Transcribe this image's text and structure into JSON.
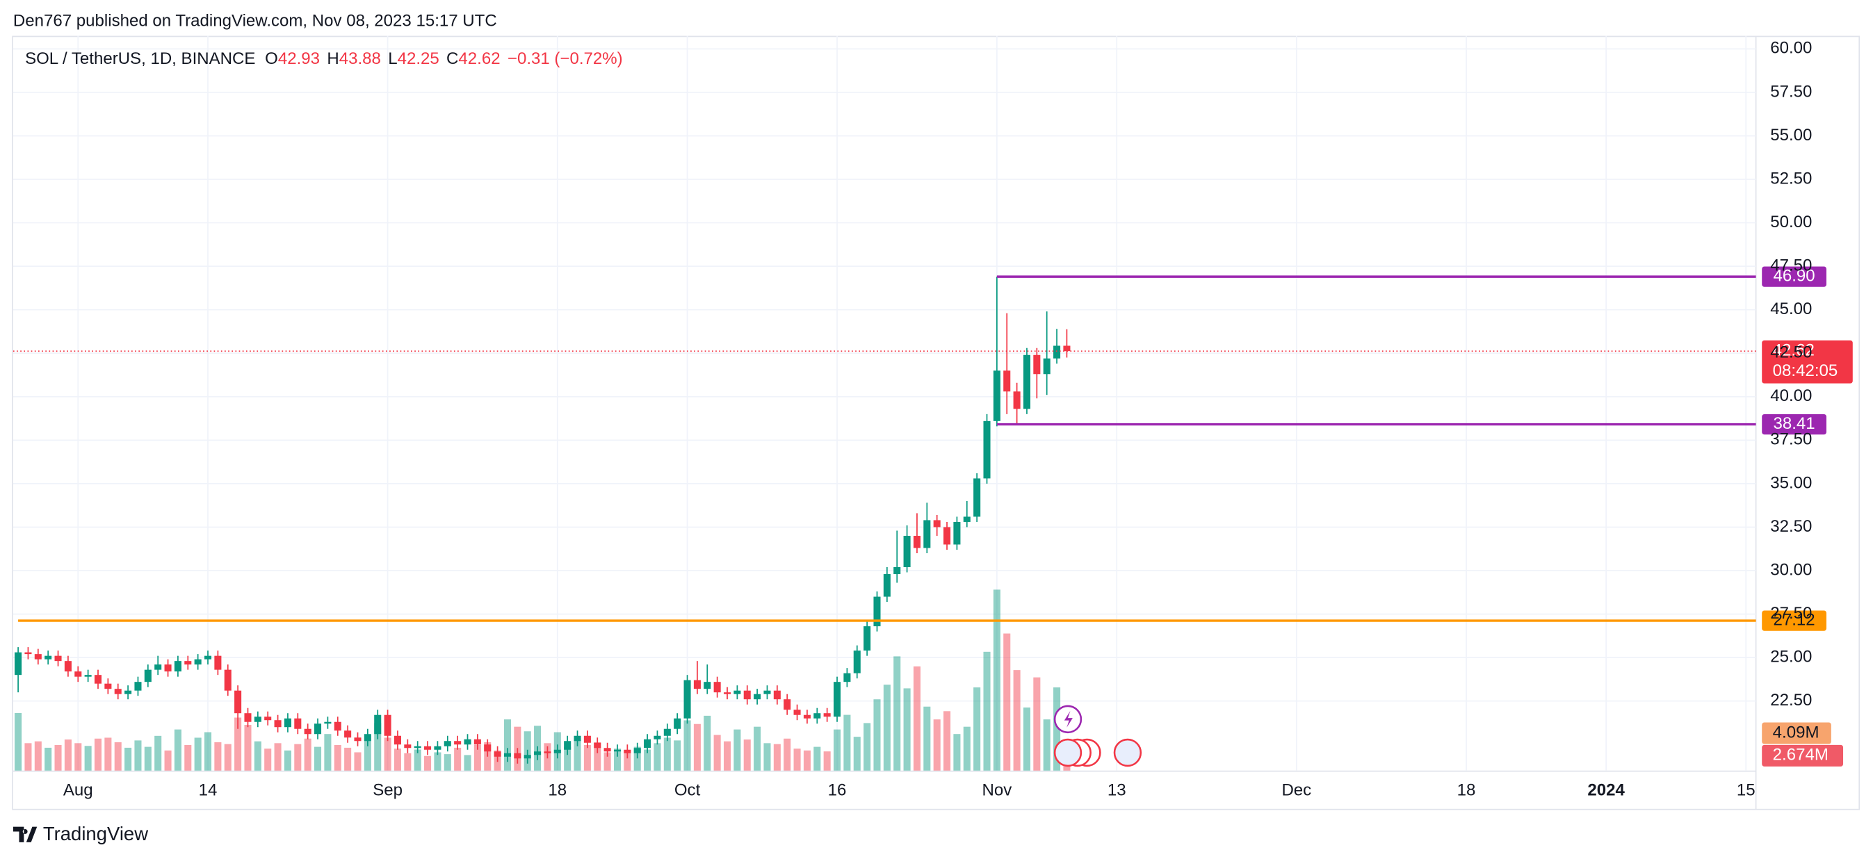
{
  "header": {
    "published": "Den767 published on TradingView.com, Nov 08, 2023 15:17 UTC"
  },
  "footer": {
    "brand": "TradingView"
  },
  "chart_data": {
    "type": "candlestick",
    "title": "SOL / TetherUS, 1D, BINANCE",
    "legend_letters": [
      "O",
      "H",
      "L",
      "C"
    ],
    "change": "−0.31 (−0.72%)",
    "countdown": "08:42:05",
    "up_color": "#089981",
    "down_color": "#f23645",
    "grid": true,
    "open": [
      24.0,
      25.3,
      25.2,
      24.9,
      25.1,
      24.8,
      24.2,
      23.9,
      24.0,
      23.5,
      23.2,
      22.9,
      23.1,
      23.6,
      24.3,
      24.6,
      24.2,
      24.8,
      24.6,
      24.9,
      25.1,
      24.3,
      23.1,
      21.8,
      21.3,
      21.6,
      21.4,
      21.0,
      21.5,
      20.9,
      20.6,
      21.2,
      21.3,
      20.8,
      20.4,
      20.2,
      20.6,
      21.7,
      20.5,
      20.0,
      19.8,
      19.9,
      19.7,
      19.9,
      20.2,
      20.0,
      20.3,
      20.0,
      19.6,
      19.3,
      19.5,
      19.2,
      19.4,
      19.6,
      19.5,
      19.7,
      20.2,
      20.5,
      20.1,
      19.8,
      19.6,
      19.7,
      19.5,
      19.8,
      20.3,
      20.5,
      20.9,
      21.5,
      23.7,
      23.2,
      23.6,
      23.0,
      22.9,
      23.1,
      22.6,
      22.9,
      23.1,
      22.6,
      22.0,
      21.7,
      21.5,
      21.8,
      21.6,
      23.6,
      24.1,
      25.4,
      26.8,
      28.5,
      29.8,
      30.2,
      32.0,
      31.3,
      32.9,
      32.5,
      31.5,
      32.8,
      33.1,
      35.3,
      38.6,
      41.5,
      40.3,
      39.3,
      42.4,
      41.3,
      42.2,
      42.93
    ],
    "high": [
      25.6,
      25.6,
      25.5,
      25.4,
      25.4,
      25.1,
      24.5,
      24.3,
      24.3,
      23.8,
      23.5,
      23.4,
      23.9,
      24.6,
      25.1,
      24.9,
      25.1,
      25.1,
      25.2,
      25.4,
      25.4,
      24.6,
      23.4,
      22.1,
      21.9,
      21.9,
      21.7,
      21.8,
      21.8,
      21.2,
      21.5,
      21.6,
      21.6,
      21.1,
      20.7,
      20.9,
      22.0,
      22.0,
      20.8,
      20.3,
      20.2,
      20.2,
      20.2,
      20.5,
      20.5,
      20.6,
      20.6,
      20.3,
      19.9,
      19.8,
      19.8,
      19.7,
      19.9,
      19.9,
      20.0,
      20.5,
      20.8,
      20.8,
      20.4,
      20.1,
      20.0,
      20.0,
      20.1,
      20.6,
      20.8,
      21.2,
      21.8,
      24.0,
      24.8,
      24.6,
      23.9,
      23.3,
      23.4,
      23.4,
      23.2,
      23.4,
      23.4,
      22.9,
      22.3,
      22.0,
      22.1,
      22.1,
      23.9,
      24.4,
      25.7,
      27.1,
      28.8,
      30.2,
      32.3,
      32.6,
      33.3,
      33.9,
      33.2,
      32.8,
      33.1,
      34.0,
      35.6,
      39.0,
      46.9,
      44.8,
      40.8,
      42.8,
      42.8,
      44.9,
      43.9,
      43.88
    ],
    "low": [
      23.0,
      24.9,
      24.6,
      24.6,
      24.5,
      23.9,
      23.6,
      23.6,
      23.2,
      22.9,
      22.6,
      22.6,
      22.8,
      23.3,
      24.0,
      23.9,
      23.9,
      24.3,
      24.3,
      24.6,
      24.0,
      22.8,
      20.9,
      21.0,
      21.0,
      21.1,
      20.7,
      20.7,
      20.6,
      20.3,
      20.3,
      20.9,
      20.5,
      20.1,
      19.9,
      19.9,
      20.3,
      20.2,
      19.7,
      19.5,
      19.5,
      19.4,
      19.4,
      19.6,
      19.7,
      19.7,
      19.7,
      19.3,
      19.0,
      19.0,
      18.9,
      18.9,
      19.1,
      19.2,
      19.2,
      19.4,
      19.9,
      19.8,
      19.5,
      19.3,
      19.3,
      19.2,
      19.2,
      19.5,
      20.0,
      20.2,
      20.6,
      21.2,
      22.9,
      22.9,
      22.7,
      22.6,
      22.6,
      22.3,
      22.3,
      22.6,
      22.3,
      21.7,
      21.4,
      21.2,
      21.2,
      21.3,
      21.3,
      23.3,
      23.8,
      25.1,
      26.5,
      28.2,
      29.3,
      29.9,
      31.0,
      31.0,
      32.0,
      31.2,
      31.2,
      32.5,
      32.8,
      35.0,
      38.3,
      39.0,
      38.4,
      39.0,
      39.9,
      40.1,
      41.9,
      42.25
    ],
    "close": [
      25.3,
      25.2,
      24.9,
      25.1,
      24.8,
      24.2,
      23.9,
      24.0,
      23.5,
      23.2,
      22.9,
      23.1,
      23.6,
      24.3,
      24.6,
      24.2,
      24.8,
      24.6,
      24.9,
      25.1,
      24.3,
      23.1,
      21.8,
      21.3,
      21.6,
      21.4,
      21.0,
      21.5,
      20.9,
      20.6,
      21.2,
      21.3,
      20.8,
      20.4,
      20.2,
      20.6,
      21.7,
      20.5,
      20.0,
      19.8,
      19.9,
      19.7,
      19.9,
      20.2,
      20.0,
      20.3,
      20.0,
      19.6,
      19.3,
      19.5,
      19.2,
      19.4,
      19.6,
      19.5,
      19.7,
      20.2,
      20.5,
      20.1,
      19.8,
      19.6,
      19.7,
      19.5,
      19.8,
      20.3,
      20.5,
      20.9,
      21.5,
      23.7,
      23.2,
      23.6,
      23.0,
      22.9,
      23.1,
      22.6,
      22.9,
      23.1,
      22.6,
      22.0,
      21.7,
      21.5,
      21.8,
      21.6,
      23.6,
      24.1,
      25.4,
      26.8,
      28.5,
      29.8,
      30.2,
      32.0,
      31.3,
      32.9,
      32.5,
      31.5,
      32.8,
      33.1,
      35.3,
      38.6,
      41.5,
      40.3,
      39.3,
      42.4,
      41.3,
      42.2,
      42.93,
      42.62
    ],
    "volume": [
      6.3,
      3.0,
      3.2,
      2.5,
      2.8,
      3.4,
      3.0,
      2.7,
      3.5,
      3.6,
      3.1,
      2.5,
      3.3,
      2.6,
      3.8,
      2.2,
      4.5,
      2.8,
      3.6,
      4.2,
      3.1,
      2.9,
      5.8,
      5.0,
      3.2,
      2.4,
      3.0,
      2.2,
      2.9,
      3.5,
      2.6,
      4.0,
      2.8,
      2.5,
      2.0,
      3.3,
      5.2,
      3.6,
      2.4,
      1.9,
      2.3,
      1.6,
      2.0,
      1.8,
      2.5,
      1.7,
      2.8,
      3.1,
      2.2,
      5.6,
      4.8,
      4.3,
      4.9,
      3.0,
      4.2,
      2.6,
      3.4,
      2.8,
      3.1,
      2.0,
      2.4,
      2.2,
      2.6,
      2.3,
      3.0,
      3.6,
      3.3,
      5.5,
      5.1,
      6.0,
      3.9,
      3.2,
      4.5,
      3.4,
      4.8,
      3.0,
      2.9,
      3.5,
      2.4,
      2.2,
      2.6,
      2.1,
      4.5,
      6.1,
      3.7,
      5.2,
      7.8,
      9.4,
      12.5,
      9.0,
      11.4,
      7.0,
      5.6,
      6.5,
      4.0,
      4.8,
      9.1,
      13.0,
      19.8,
      15.0,
      11.0,
      6.9,
      10.2,
      5.6,
      9.1,
      2.674
    ],
    "volume_ylim": [
      0,
      20
    ],
    "last_volume_label": "2.674M",
    "volume_ma": {
      "value": 4.09,
      "label": "4.09M"
    },
    "xlim": [
      -0.5,
      174
    ],
    "xticks": [
      {
        "value": 6,
        "label": "Aug"
      },
      {
        "value": 19,
        "label": "14"
      },
      {
        "value": 37,
        "label": "Sep"
      },
      {
        "value": 54,
        "label": "18"
      },
      {
        "value": 67,
        "label": "Oct"
      },
      {
        "value": 82,
        "label": "16"
      },
      {
        "value": 98,
        "label": "Nov"
      },
      {
        "value": 110,
        "label": "13"
      },
      {
        "value": 128,
        "label": "Dec"
      },
      {
        "value": 145,
        "label": "18"
      },
      {
        "value": 159,
        "label": "2024"
      },
      {
        "value": 173,
        "label": "15"
      }
    ],
    "ylim": [
      18.5,
      60.75
    ],
    "yticks": [
      {
        "value": 22.5,
        "label": "22.50"
      },
      {
        "value": 25,
        "label": "25.00"
      },
      {
        "value": 27.5,
        "label": "27.50"
      },
      {
        "value": 30,
        "label": "30.00"
      },
      {
        "value": 32.5,
        "label": "32.50"
      },
      {
        "value": 35,
        "label": "35.00"
      },
      {
        "value": 37.5,
        "label": "37.50"
      },
      {
        "value": 40,
        "label": "40.00"
      },
      {
        "value": 42.5,
        "label": "42.50"
      },
      {
        "value": 45,
        "label": "45.00"
      },
      {
        "value": 47.5,
        "label": "47.50"
      },
      {
        "value": 50,
        "label": "50.00"
      },
      {
        "value": 52.5,
        "label": "52.50"
      },
      {
        "value": 55,
        "label": "55.00"
      },
      {
        "value": 57.5,
        "label": "57.50"
      },
      {
        "value": 60,
        "label": "60.00"
      }
    ],
    "hlines": [
      {
        "value": 46.9,
        "label": "46.90",
        "color": "#9c27b0",
        "start_index": 98
      },
      {
        "value": 38.41,
        "label": "38.41",
        "color": "#9c27b0",
        "start_index": 98
      },
      {
        "value": 27.12,
        "label": "27.12",
        "color": "#ff9800",
        "start_index": 0
      }
    ]
  }
}
